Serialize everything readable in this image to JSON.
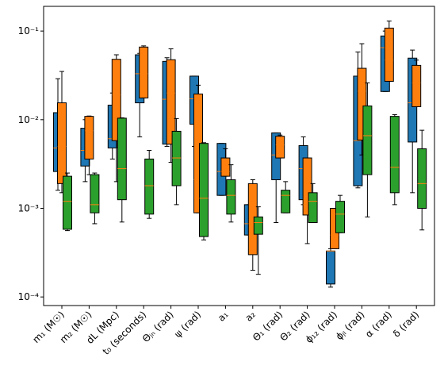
{
  "chart_data": {
    "type": "box",
    "log_y": true,
    "categories": [
      "m₁ (M☉)",
      "m₂ (M☉)",
      "dL (Mpc)",
      "t₀ (seconds)",
      "Θⱼₙ (rad)",
      "ψ (rad)",
      "a₁",
      "a₂",
      "Θ₁ (rad)",
      "Θ₂ (rad)",
      "ϕ₁₂ (rad)",
      "ϕⱼₗ (rad)",
      "α (rad)",
      "δ (rad)"
    ],
    "ylim": [
      8e-05,
      0.19
    ],
    "yticks": [
      {
        "value": 0.0001,
        "label": "10⁻⁴"
      },
      {
        "value": 0.001,
        "label": "10⁻³"
      },
      {
        "value": 0.01,
        "label": "10⁻²"
      },
      {
        "value": 0.1,
        "label": "10⁻¹"
      }
    ],
    "median_color": "#ff7f0e",
    "series": [
      {
        "color": "#1f77b4",
        "whislo": [
          0.0016,
          0.002,
          0.0036,
          0.0064,
          0.005,
          0.005,
          0.0014,
          0.0005,
          0.00069,
          0.0011,
          0.000129,
          0.0017,
          0.0208,
          0.0015
        ],
        "q1": [
          0.0026,
          0.003,
          0.0048,
          0.0155,
          0.0053,
          0.0089,
          0.0014,
          0.0005,
          0.0021,
          0.00125,
          0.00014,
          0.0018,
          0.0208,
          0.0056
        ],
        "med": [
          0.0048,
          0.0045,
          0.0061,
          0.033,
          0.017,
          0.0172,
          0.0026,
          0.00067,
          0.004,
          0.0028,
          0.00033,
          0.0058,
          0.065,
          0.0155
        ],
        "q3": [
          0.012,
          0.008,
          0.0146,
          0.054,
          0.0455,
          0.031,
          0.0054,
          0.0011,
          0.0071,
          0.0051,
          0.00033,
          0.031,
          0.088,
          0.0495
        ],
        "whishi": [
          0.029,
          0.01,
          0.02,
          0.056,
          0.05,
          0.031,
          0.0054,
          0.0011,
          0.0071,
          0.0064,
          0.00035,
          0.058,
          0.1,
          0.061
        ]
      },
      {
        "color": "#ff7f0e",
        "whislo": [
          0.0015,
          0.0024,
          0.002,
          0.0176,
          0.0033,
          0.00089,
          0.0023,
          0.0002,
          0.0037,
          0.0004,
          0.00035,
          0.004,
          0.0271,
          0.014
        ],
        "q1": [
          0.0019,
          0.0036,
          0.0058,
          0.0176,
          0.0053,
          0.00089,
          0.0023,
          0.0003,
          0.0037,
          0.00084,
          0.00035,
          0.0059,
          0.0271,
          0.014
        ],
        "med": [
          0.005,
          0.0075,
          0.019,
          0.033,
          0.02,
          0.0021,
          0.0026,
          0.00067,
          0.0052,
          0.0011,
          0.0005,
          0.021,
          0.047,
          0.026
        ],
        "q3": [
          0.0155,
          0.0109,
          0.048,
          0.066,
          0.0475,
          0.0195,
          0.0037,
          0.0019,
          0.0065,
          0.0037,
          0.001,
          0.038,
          0.108,
          0.041
        ],
        "whishi": [
          0.035,
          0.011,
          0.054,
          0.068,
          0.063,
          0.0245,
          0.0047,
          0.0021,
          0.0067,
          0.0037,
          0.001,
          0.072,
          0.13,
          0.047
        ]
      },
      {
        "color": "#2ca02c",
        "whislo": [
          0.00056,
          0.00067,
          0.0007,
          0.00077,
          0.0011,
          0.00044,
          0.0007,
          0.00018,
          0.00089,
          0.00069,
          0.00053,
          0.0008,
          0.0011,
          0.00057
        ],
        "q1": [
          0.00058,
          0.00089,
          0.00125,
          0.00086,
          0.0018,
          0.00048,
          0.00086,
          0.00051,
          0.00089,
          0.00069,
          0.00053,
          0.0024,
          0.0015,
          0.001
        ],
        "med": [
          0.0012,
          0.0011,
          0.0028,
          0.0018,
          0.0037,
          0.0013,
          0.0014,
          0.00069,
          0.0014,
          0.0012,
          0.00086,
          0.0066,
          0.0029,
          0.0019
        ],
        "q3": [
          0.0023,
          0.0024,
          0.0104,
          0.0036,
          0.0074,
          0.0054,
          0.0021,
          0.0008,
          0.0016,
          0.0015,
          0.0012,
          0.0143,
          0.0109,
          0.0047
        ],
        "whishi": [
          0.0025,
          0.0025,
          0.0105,
          0.0045,
          0.0103,
          0.0055,
          0.0031,
          0.00104,
          0.002,
          0.0019,
          0.0014,
          0.026,
          0.0114,
          0.0076
        ]
      }
    ]
  }
}
